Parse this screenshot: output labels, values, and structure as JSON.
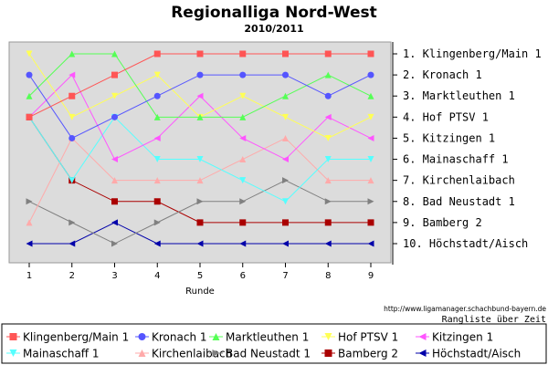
{
  "chart_data": {
    "type": "line",
    "title": "Regionalliga Nord-West",
    "subtitle": "2010/2011",
    "xlabel": "Runde",
    "ylabel": "",
    "x": [
      1,
      2,
      3,
      4,
      5,
      6,
      7,
      8,
      9
    ],
    "ylim": [
      1,
      10
    ],
    "grid": false,
    "legend": "bottom",
    "right_labels": [
      "1. Klingenberg/Main 1",
      "2. Kronach 1",
      "3. Marktleuthen 1",
      "4. Hof PTSV 1",
      "5. Kitzingen 1",
      "6. Mainaschaff 1",
      "7. Kirchenlaibach",
      "8. Bad Neustadt 1",
      "9. Bamberg 2",
      "10. Höchstadt/Aisch"
    ],
    "source": "http://www.ligamanager.schachbund-bayern.de",
    "caption": "Rangliste über Zeit",
    "series": [
      {
        "name": "Klingenberg/Main 1",
        "color": "#ff5555",
        "marker": "square",
        "values": [
          4,
          3,
          2,
          1,
          1,
          1,
          1,
          1,
          1
        ]
      },
      {
        "name": "Kronach 1",
        "color": "#5555ff",
        "marker": "circle",
        "values": [
          2,
          5,
          4,
          3,
          2,
          2,
          2,
          3,
          2
        ]
      },
      {
        "name": "Marktleuthen 1",
        "color": "#55ff55",
        "marker": "triangle-up",
        "values": [
          3,
          1,
          1,
          4,
          4,
          4,
          3,
          2,
          3
        ]
      },
      {
        "name": "Hof PTSV 1",
        "color": "#ffff55",
        "marker": "triangle-down",
        "values": [
          1,
          4,
          3,
          2,
          4,
          3,
          4,
          5,
          4
        ]
      },
      {
        "name": "Kitzingen 1",
        "color": "#ff55ff",
        "marker": "triangle-left",
        "values": [
          4,
          2,
          6,
          5,
          3,
          5,
          6,
          4,
          5
        ]
      },
      {
        "name": "Mainaschaff 1",
        "color": "#55ffff",
        "marker": "triangle-down",
        "values": [
          4,
          7,
          4,
          6,
          6,
          7,
          8,
          6,
          6
        ]
      },
      {
        "name": "Kirchenlaibach",
        "color": "#ffaaaa",
        "marker": "triangle-up",
        "values": [
          9,
          5,
          7,
          7,
          7,
          6,
          5,
          7,
          7
        ]
      },
      {
        "name": "Bad Neustadt 1",
        "color": "#808080",
        "marker": "triangle-right",
        "values": [
          8,
          9,
          10,
          9,
          8,
          8,
          7,
          8,
          8
        ]
      },
      {
        "name": "Bamberg 2",
        "color": "#aa0000",
        "marker": "square",
        "values": [
          4,
          7,
          8,
          8,
          9,
          9,
          9,
          9,
          9
        ]
      },
      {
        "name": "Höchstadt/Aisch",
        "color": "#0000aa",
        "marker": "triangle-left",
        "values": [
          10,
          10,
          9,
          10,
          10,
          10,
          10,
          10,
          10
        ]
      }
    ]
  }
}
